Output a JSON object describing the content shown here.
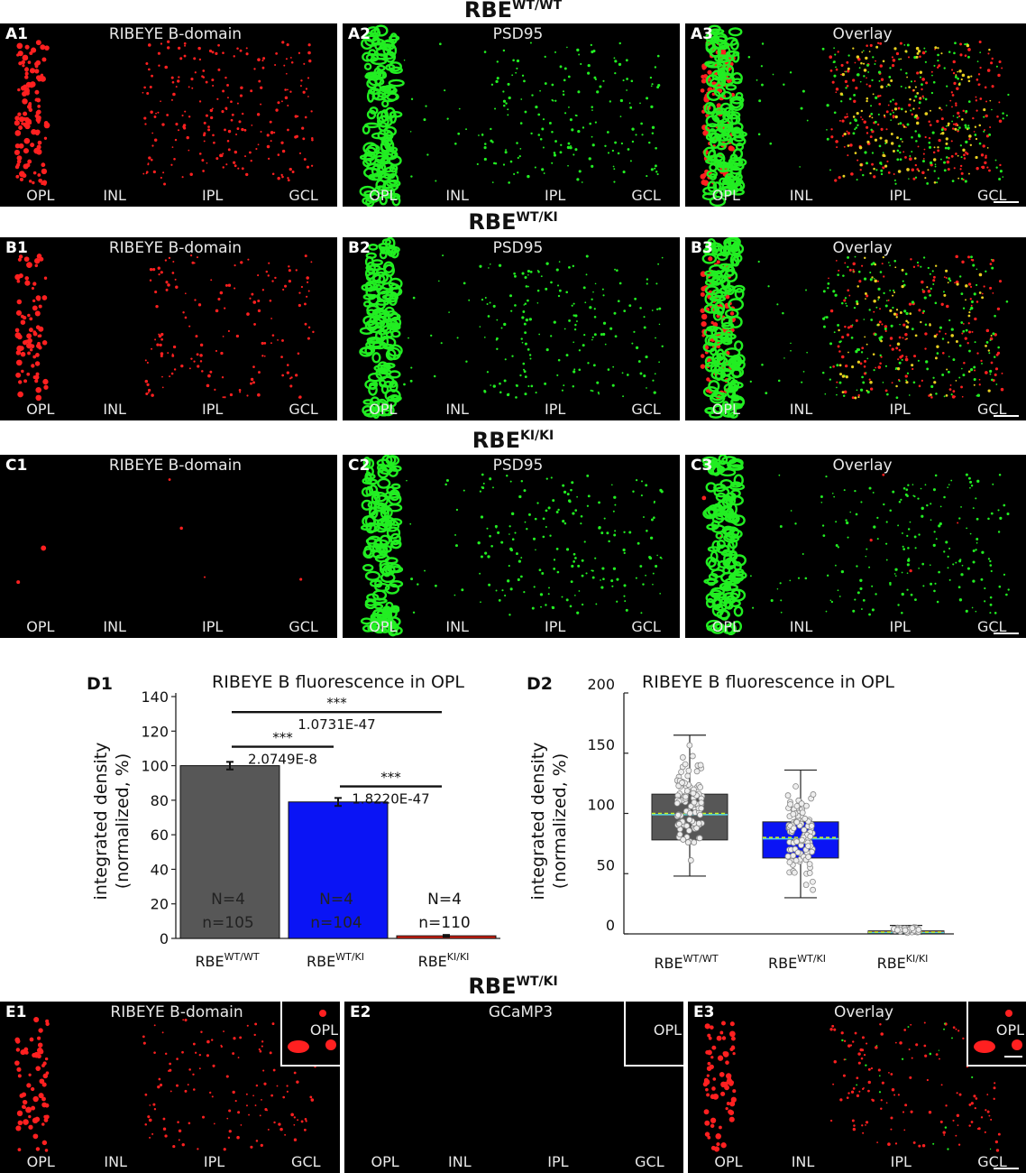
{
  "headers": {
    "wt_wt": {
      "base": "RBE",
      "sup": "WT/WT"
    },
    "wt_ki": {
      "base": "RBE",
      "sup": "WT/KI"
    },
    "ki_ki": {
      "base": "RBE",
      "sup": "KI/KI"
    },
    "wt_ki_e": {
      "base": "RBE",
      "sup": "WT/KI"
    }
  },
  "layers": [
    "OPL",
    "INL",
    "IPL",
    "GCL"
  ],
  "panels": {
    "A1": {
      "label": "A1",
      "title": "RIBEYE B-domain"
    },
    "A2": {
      "label": "A2",
      "title": "PSD95"
    },
    "A3": {
      "label": "A3",
      "title": "Overlay"
    },
    "B1": {
      "label": "B1",
      "title": "RIBEYE B-domain"
    },
    "B2": {
      "label": "B2",
      "title": "PSD95"
    },
    "B3": {
      "label": "B3",
      "title": "Overlay"
    },
    "C1": {
      "label": "C1",
      "title": "RIBEYE B-domain"
    },
    "C2": {
      "label": "C2",
      "title": "PSD95"
    },
    "C3": {
      "label": "C3",
      "title": "Overlay"
    },
    "E1": {
      "label": "E1",
      "title": "RIBEYE B-domain",
      "inset": "OPL"
    },
    "E2": {
      "label": "E2",
      "title": "GCaMP3",
      "inset": "OPL"
    },
    "E3": {
      "label": "E3",
      "title": "Overlay",
      "inset": "OPL"
    }
  },
  "colors": {
    "ribeye": "#ff2020",
    "psd95": "#22ee22",
    "wt_wt": "#575757",
    "wt_ki": "#0a14f5",
    "ki_ki": "#e02010"
  },
  "chart_data": [
    {
      "type": "bar",
      "panel_label": "D1",
      "title": "RIBEYE B fluorescence in OPL",
      "ylabel": "integrated density\n(normalized, %)",
      "ylim": [
        0,
        140
      ],
      "yticks": [
        0,
        20,
        40,
        60,
        80,
        100,
        120,
        140
      ],
      "categories": [
        {
          "base": "RBE",
          "sup": "WT/WT"
        },
        {
          "base": "RBE",
          "sup": "WT/KI"
        },
        {
          "base": "RBE",
          "sup": "KI/KI"
        }
      ],
      "values": [
        100,
        79,
        1.5
      ],
      "errors": [
        2.2,
        2.3,
        0.5
      ],
      "N_labels": [
        "N=4",
        "N=4",
        "N=4"
      ],
      "n_labels": [
        "n=105",
        "n=104",
        "n=110"
      ],
      "significance": [
        {
          "from": 0,
          "to": 2,
          "stars": "***",
          "p": "1.0731E-47",
          "y": 131
        },
        {
          "from": 0,
          "to": 1,
          "stars": "***",
          "p": "2.0749E-8",
          "y": 111
        },
        {
          "from": 1,
          "to": 2,
          "stars": "***",
          "p": "1.8220E-47",
          "y": 88
        }
      ]
    },
    {
      "type": "box",
      "panel_label": "D2",
      "title": "RIBEYE B fluorescence in OPL",
      "ylabel": "integrated density\n(normalized, %)",
      "ylim": [
        0,
        200
      ],
      "yticks": [
        0,
        50,
        100,
        150,
        200
      ],
      "categories": [
        {
          "base": "RBE",
          "sup": "WT/WT"
        },
        {
          "base": "RBE",
          "sup": "WT/KI"
        },
        {
          "base": "RBE",
          "sup": "KI/KI"
        }
      ],
      "boxes": [
        {
          "min": 48,
          "q1": 78,
          "median": 99,
          "mean": 100,
          "q3": 116,
          "max": 165
        },
        {
          "min": 30,
          "q1": 63,
          "median": 79,
          "mean": 80,
          "q3": 93,
          "max": 136
        },
        {
          "min": 0,
          "q1": 0.5,
          "median": 1.2,
          "mean": 1.5,
          "q3": 2.5,
          "max": 7
        }
      ]
    }
  ]
}
